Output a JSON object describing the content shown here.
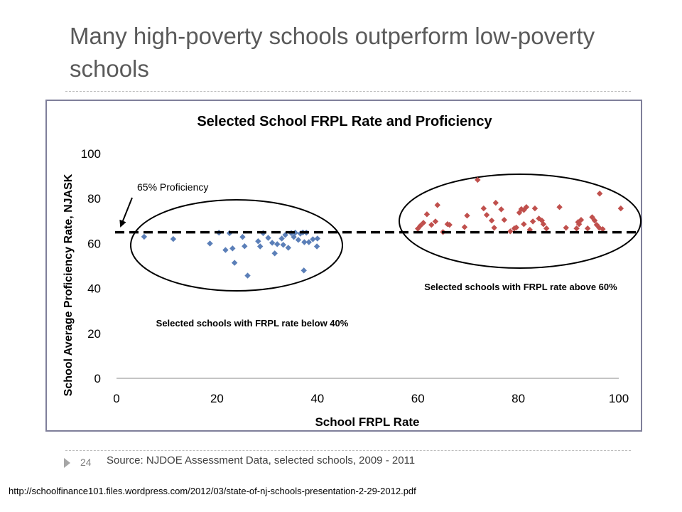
{
  "slide": {
    "title": "Many high-poverty schools outperform low-poverty schools",
    "number": "24",
    "source": "Source: NJDOE Assessment Data, selected schools, 2009 - 2011",
    "url": "http://schoolfinance101.files.wordpress.com/2012/03/state-of-nj-schools-presentation-2-29-2012.pdf"
  },
  "colors": {
    "low_series": "#5b7fb8",
    "high_series": "#c0504d",
    "title_text": "#5a5a5a"
  },
  "chart_data": {
    "type": "scatter",
    "title": "Selected School FRPL Rate and Proficiency",
    "xlabel": "School FRPL Rate",
    "ylabel": "School Average Proficiency Rate, NJASK",
    "xlim": [
      0,
      100
    ],
    "ylim": [
      0,
      100
    ],
    "xticks": [
      0,
      20,
      40,
      60,
      80,
      100
    ],
    "yticks": [
      0,
      20,
      40,
      60,
      80,
      100
    ],
    "reference_line": {
      "y": 65,
      "label": "65% Proficiency",
      "style": "dashed"
    },
    "annotations": {
      "low_group": "Selected schools with FRPL rate below 40%",
      "high_group": "Selected schools with FRPL rate above 60%"
    },
    "series": [
      {
        "name": "FRPL below 40%",
        "points": [
          [
            5.5,
            63
          ],
          [
            11.3,
            62
          ],
          [
            18.6,
            60
          ],
          [
            20.4,
            64.8
          ],
          [
            21.7,
            57.1
          ],
          [
            22.5,
            64.6
          ],
          [
            23.1,
            57.8
          ],
          [
            23.5,
            51.4
          ],
          [
            25.1,
            62.9
          ],
          [
            25.5,
            58.8
          ],
          [
            26.1,
            45.7
          ],
          [
            28.2,
            61
          ],
          [
            28.6,
            58.7
          ],
          [
            29.2,
            64.6
          ],
          [
            30.2,
            62.5
          ],
          [
            31,
            60.3
          ],
          [
            31.5,
            55.6
          ],
          [
            32,
            59.7
          ],
          [
            32.9,
            62.2
          ],
          [
            33.2,
            59.4
          ],
          [
            33.6,
            63.8
          ],
          [
            34.2,
            58.1
          ],
          [
            34.8,
            64.6
          ],
          [
            35.3,
            62.9
          ],
          [
            35.6,
            64.8
          ],
          [
            36.2,
            61.6
          ],
          [
            36.6,
            64.4
          ],
          [
            37.1,
            64.9
          ],
          [
            37.4,
            60.6
          ],
          [
            37.8,
            64.8
          ],
          [
            38.3,
            60.6
          ],
          [
            39.1,
            61.9
          ],
          [
            39.9,
            58.7
          ],
          [
            40,
            62.2
          ],
          [
            37.3,
            48
          ]
        ]
      },
      {
        "name": "FRPL above 60%",
        "points": [
          [
            60,
            66.6
          ],
          [
            60.5,
            67.9
          ],
          [
            61.1,
            69.2
          ],
          [
            61.8,
            73
          ],
          [
            62.7,
            68.3
          ],
          [
            63.5,
            69.8
          ],
          [
            63.9,
            77.1
          ],
          [
            65,
            65.1
          ],
          [
            65.9,
            68.6
          ],
          [
            66.3,
            68.3
          ],
          [
            69.3,
            67.3
          ],
          [
            69.8,
            72.4
          ],
          [
            71.9,
            88.3
          ],
          [
            73.1,
            75.6
          ],
          [
            73.7,
            72.7
          ],
          [
            74.7,
            70.2
          ],
          [
            75.2,
            67
          ],
          [
            75.5,
            78.1
          ],
          [
            76.6,
            75.2
          ],
          [
            77.2,
            70.5
          ],
          [
            78.4,
            65.4
          ],
          [
            79.2,
            66.7
          ],
          [
            79.6,
            67.1
          ],
          [
            80.2,
            73.7
          ],
          [
            80.6,
            75.3
          ],
          [
            81.1,
            74.9
          ],
          [
            81.1,
            68.6
          ],
          [
            81.6,
            76.2
          ],
          [
            82.3,
            66.1
          ],
          [
            82.9,
            69.8
          ],
          [
            83.3,
            75.6
          ],
          [
            84.1,
            71.1
          ],
          [
            84.7,
            70.2
          ],
          [
            85,
            68.6
          ],
          [
            85.6,
            66.7
          ],
          [
            88.2,
            76.2
          ],
          [
            89.5,
            67
          ],
          [
            91.6,
            66.7
          ],
          [
            91.9,
            69.5
          ],
          [
            92.1,
            68.6
          ],
          [
            92.5,
            70.5
          ],
          [
            93.8,
            66.7
          ],
          [
            94.7,
            71.7
          ],
          [
            95.2,
            70.2
          ],
          [
            95.6,
            68.3
          ],
          [
            96.1,
            67
          ],
          [
            96.2,
            82.2
          ],
          [
            96.8,
            66.4
          ],
          [
            100.4,
            75.6
          ]
        ]
      }
    ]
  }
}
